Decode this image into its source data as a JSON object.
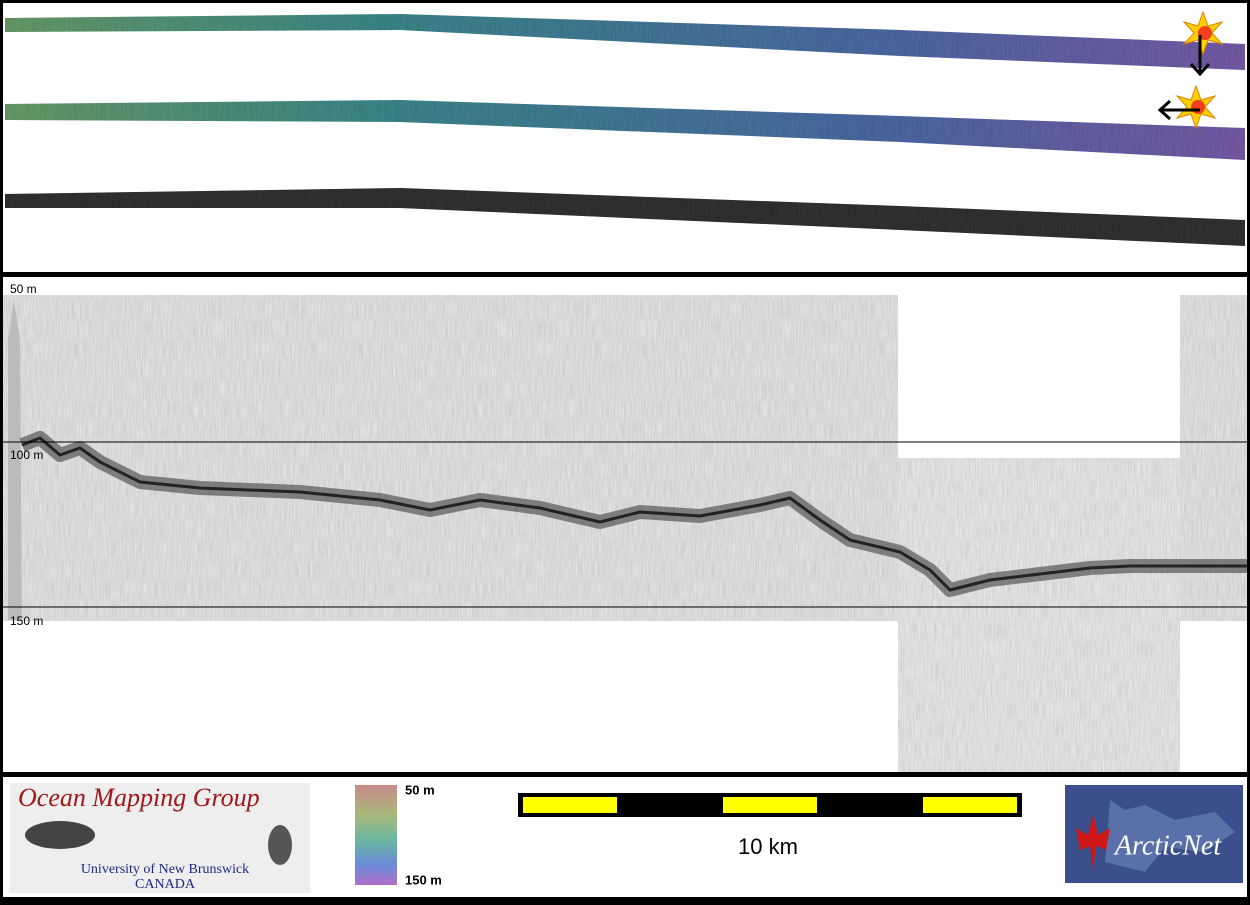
{
  "profile": {
    "depth_labels": [
      "50 m",
      "100 m",
      "150 m"
    ]
  },
  "footer": {
    "group_logo": {
      "title": "Ocean Mapping Group",
      "line1": "University of New Brunswick",
      "line2": "CANADA"
    },
    "colorbar": {
      "top_label": "50 m",
      "bottom_label": "150 m"
    },
    "scale_bar": {
      "label": "10 km"
    },
    "partner_logo": {
      "name": "ArcticNet"
    }
  }
}
